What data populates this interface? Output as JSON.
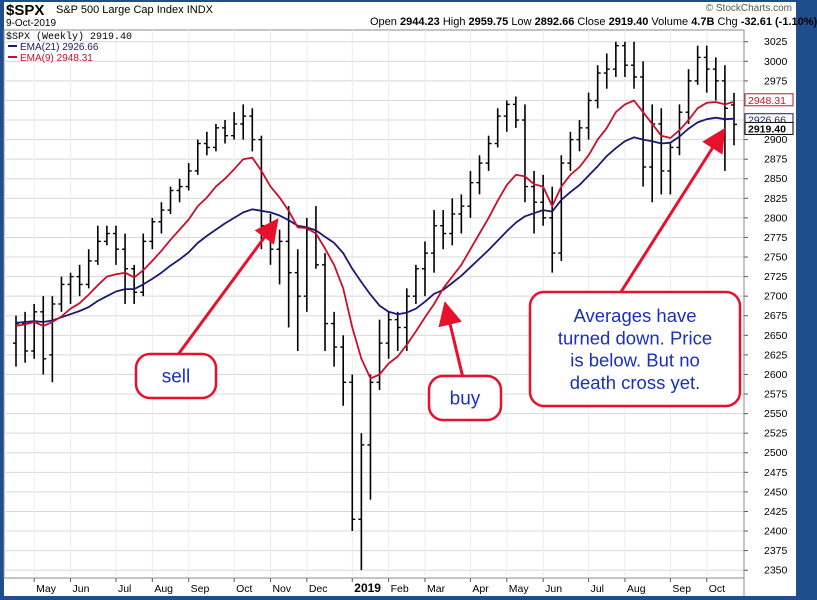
{
  "header": {
    "symbol": "$SPX",
    "company": "S&P 500 Large Cap Index",
    "exchange": "INDX",
    "date": "9-Oct-2019",
    "open_label": "Open",
    "open": "2944.23",
    "high_label": "High",
    "high": "2959.75",
    "low_label": "Low",
    "low": "2892.66",
    "close_label": "Close",
    "close": "2919.40",
    "volume_label": "Volume",
    "volume": "4.7B",
    "chg_label": "Chg",
    "chg": "-32.61 (-1.10%)",
    "brand": "© StockCharts.com"
  },
  "colors": {
    "frame": "#1f4e8c",
    "price_bars": "#000000",
    "ema21": "#1a1a6e",
    "ema9": "#c8102e",
    "callout_border": "#e8102a",
    "callout_text": "#1a2fbf",
    "arrow": "#e8102a"
  },
  "chart_data": {
    "type": "line",
    "title": "$SPX (Weekly) 2919.40",
    "x_tick_labels": [
      "May",
      "Jun",
      "Jul",
      "Aug",
      "Sep",
      "Oct",
      "Nov",
      "Dec",
      "2019",
      "Feb",
      "Mar",
      "Apr",
      "May",
      "Jun",
      "Jul",
      "Aug",
      "Sep",
      "Oct"
    ],
    "ylim": [
      2340,
      3040
    ],
    "y_ticks": [
      2350,
      2375,
      2400,
      2425,
      2450,
      2475,
      2500,
      2525,
      2550,
      2575,
      2600,
      2625,
      2650,
      2675,
      2700,
      2725,
      2750,
      2775,
      2800,
      2825,
      2850,
      2875,
      2900,
      2925,
      2950,
      2975,
      3000,
      3025
    ],
    "grid": true,
    "legend_position": "top-left",
    "legend": [
      {
        "label": "$SPX (Weekly) 2919.40",
        "color": "#000000"
      },
      {
        "label": "EMA(21) 2926.66",
        "color": "#1a1a6e"
      },
      {
        "label": "EMA(9) 2948.31",
        "color": "#c8102e"
      }
    ],
    "last_value_labels": [
      {
        "value": 2948.31,
        "text": "2948.31",
        "color": "#c8102e"
      },
      {
        "value": 2926.66,
        "text": "2926.66",
        "color": "#1a1a6e"
      },
      {
        "value": 2919.4,
        "text": "2919.40",
        "color": "#000000"
      }
    ],
    "ohlc": [
      [
        2640,
        2675,
        2610,
        2665
      ],
      [
        2665,
        2680,
        2615,
        2630
      ],
      [
        2630,
        2690,
        2620,
        2680
      ],
      [
        2680,
        2700,
        2600,
        2620
      ],
      [
        2625,
        2700,
        2590,
        2690
      ],
      [
        2690,
        2725,
        2680,
        2715
      ],
      [
        2715,
        2730,
        2690,
        2725
      ],
      [
        2725,
        2740,
        2700,
        2715
      ],
      [
        2715,
        2760,
        2710,
        2745
      ],
      [
        2745,
        2790,
        2740,
        2770
      ],
      [
        2770,
        2790,
        2765,
        2780
      ],
      [
        2780,
        2790,
        2740,
        2760
      ],
      [
        2760,
        2780,
        2690,
        2735
      ],
      [
        2735,
        2740,
        2690,
        2705
      ],
      [
        2705,
        2780,
        2700,
        2770
      ],
      [
        2770,
        2800,
        2760,
        2795
      ],
      [
        2795,
        2820,
        2780,
        2810
      ],
      [
        2810,
        2840,
        2805,
        2835
      ],
      [
        2835,
        2850,
        2820,
        2840
      ],
      [
        2840,
        2870,
        2835,
        2860
      ],
      [
        2860,
        2900,
        2855,
        2895
      ],
      [
        2895,
        2910,
        2880,
        2890
      ],
      [
        2890,
        2920,
        2885,
        2915
      ],
      [
        2915,
        2925,
        2895,
        2905
      ],
      [
        2905,
        2935,
        2900,
        2920
      ],
      [
        2920,
        2945,
        2900,
        2930
      ],
      [
        2930,
        2940,
        2885,
        2900
      ],
      [
        2900,
        2905,
        2760,
        2790
      ],
      [
        2790,
        2805,
        2740,
        2760
      ],
      [
        2760,
        2785,
        2715,
        2770
      ],
      [
        2770,
        2815,
        2660,
        2730
      ],
      [
        2730,
        2760,
        2630,
        2700
      ],
      [
        2700,
        2800,
        2680,
        2785
      ],
      [
        2785,
        2815,
        2735,
        2740
      ],
      [
        2740,
        2755,
        2630,
        2665
      ],
      [
        2665,
        2680,
        2610,
        2635
      ],
      [
        2635,
        2650,
        2560,
        2590
      ],
      [
        2590,
        2600,
        2400,
        2415
      ],
      [
        2415,
        2525,
        2350,
        2510
      ],
      [
        2510,
        2600,
        2440,
        2590
      ],
      [
        2590,
        2670,
        2580,
        2640
      ],
      [
        2640,
        2680,
        2620,
        2670
      ],
      [
        2670,
        2680,
        2630,
        2660
      ],
      [
        2660,
        2710,
        2630,
        2700
      ],
      [
        2700,
        2740,
        2690,
        2735
      ],
      [
        2735,
        2770,
        2700,
        2755
      ],
      [
        2755,
        2810,
        2730,
        2790
      ],
      [
        2790,
        2810,
        2760,
        2780
      ],
      [
        2780,
        2825,
        2765,
        2805
      ],
      [
        2805,
        2830,
        2780,
        2815
      ],
      [
        2815,
        2860,
        2800,
        2845
      ],
      [
        2845,
        2880,
        2830,
        2870
      ],
      [
        2870,
        2905,
        2860,
        2895
      ],
      [
        2895,
        2940,
        2890,
        2930
      ],
      [
        2930,
        2950,
        2910,
        2945
      ],
      [
        2945,
        2955,
        2915,
        2925
      ],
      [
        2925,
        2945,
        2820,
        2840
      ],
      [
        2840,
        2860,
        2780,
        2820
      ],
      [
        2820,
        2855,
        2790,
        2800
      ],
      [
        2800,
        2840,
        2730,
        2755
      ],
      [
        2755,
        2880,
        2745,
        2870
      ],
      [
        2870,
        2910,
        2860,
        2900
      ],
      [
        2900,
        2925,
        2885,
        2915
      ],
      [
        2915,
        2960,
        2900,
        2950
      ],
      [
        2950,
        2995,
        2940,
        2985
      ],
      [
        2985,
        3010,
        2965,
        2990
      ],
      [
        2990,
        3025,
        2980,
        3020
      ],
      [
        3020,
        3025,
        2980,
        2995
      ],
      [
        2995,
        3025,
        2965,
        2980
      ],
      [
        2980,
        3000,
        2840,
        2865
      ],
      [
        2865,
        2945,
        2820,
        2920
      ],
      [
        2920,
        2940,
        2830,
        2860
      ],
      [
        2860,
        2895,
        2830,
        2890
      ],
      [
        2890,
        2945,
        2880,
        2935
      ],
      [
        2935,
        2990,
        2920,
        2975
      ],
      [
        2975,
        3020,
        2970,
        3005
      ],
      [
        3005,
        3020,
        2960,
        2990
      ],
      [
        2990,
        3005,
        2950,
        2975
      ],
      [
        2975,
        2995,
        2860,
        2940
      ],
      [
        2944.23,
        2959.75,
        2892.66,
        2919.4
      ]
    ],
    "series": [
      {
        "name": "EMA(21)",
        "values": [
          2666,
          2667,
          2668,
          2667,
          2669,
          2673,
          2677,
          2681,
          2686,
          2694,
          2700,
          2706,
          2709,
          2709,
          2715,
          2722,
          2730,
          2739,
          2747,
          2756,
          2768,
          2777,
          2785,
          2793,
          2800,
          2807,
          2811,
          2809,
          2807,
          2803,
          2797,
          2790,
          2788,
          2784,
          2776,
          2768,
          2755,
          2735,
          2718,
          2702,
          2688,
          2680,
          2677,
          2679,
          2684,
          2693,
          2703,
          2708,
          2717,
          2726,
          2737,
          2748,
          2759,
          2771,
          2783,
          2794,
          2802,
          2806,
          2810,
          2808,
          2823,
          2833,
          2842,
          2854,
          2866,
          2879,
          2889,
          2898,
          2903,
          2900,
          2898,
          2895,
          2896,
          2904,
          2914,
          2922,
          2926,
          2928,
          2926,
          2926.66
        ]
      },
      {
        "name": "EMA(9)",
        "values": [
          2662,
          2664,
          2667,
          2662,
          2667,
          2674,
          2684,
          2691,
          2702,
          2714,
          2725,
          2728,
          2730,
          2724,
          2733,
          2745,
          2758,
          2772,
          2785,
          2798,
          2815,
          2826,
          2840,
          2850,
          2862,
          2875,
          2877,
          2860,
          2840,
          2826,
          2809,
          2788,
          2787,
          2780,
          2761,
          2740,
          2710,
          2660,
          2620,
          2595,
          2600,
          2614,
          2623,
          2638,
          2655,
          2673,
          2690,
          2710,
          2725,
          2740,
          2760,
          2780,
          2800,
          2822,
          2842,
          2855,
          2853,
          2843,
          2840,
          2815,
          2840,
          2855,
          2865,
          2880,
          2900,
          2915,
          2935,
          2945,
          2950,
          2935,
          2920,
          2905,
          2902,
          2912,
          2925,
          2940,
          2947,
          2948,
          2945,
          2948.31
        ]
      }
    ],
    "annotations": [
      {
        "text": "sell"
      },
      {
        "text": "buy"
      },
      {
        "text": "Averages have turned down. Price is below. But no death cross yet."
      }
    ]
  }
}
